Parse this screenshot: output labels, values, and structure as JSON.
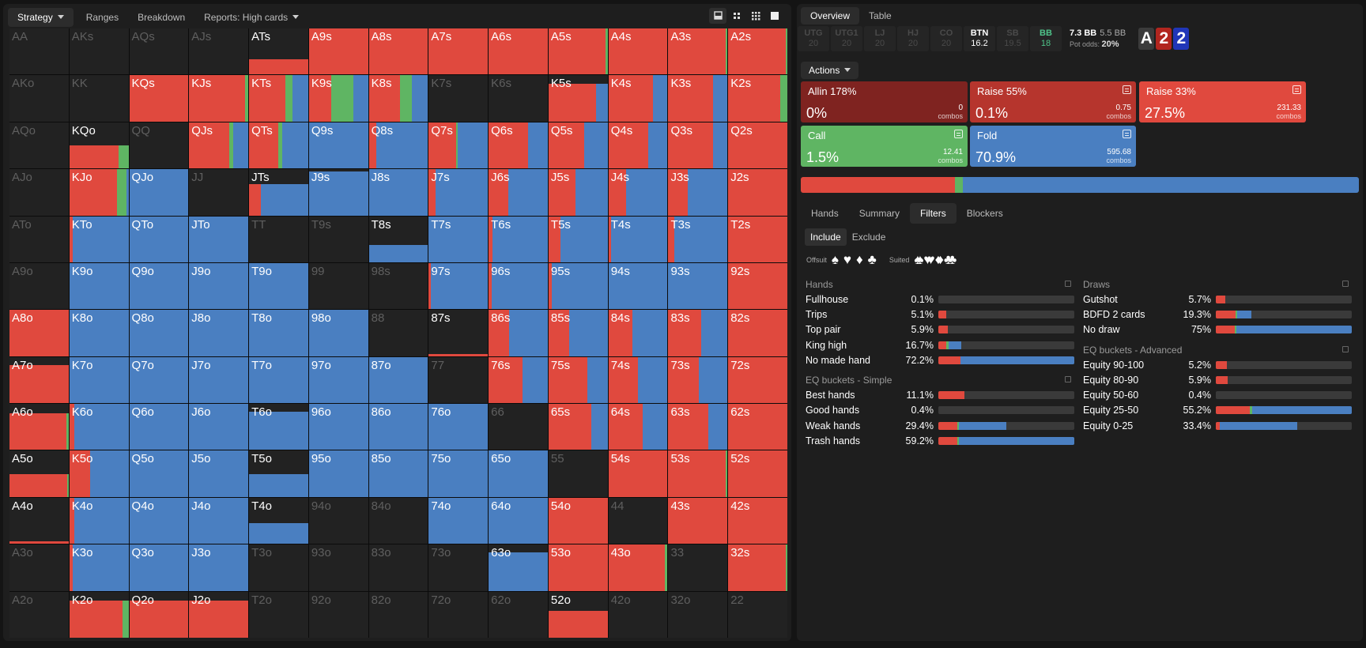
{
  "colors": {
    "raise": "#e0493e",
    "fold": "#4a7fc1",
    "call": "#5fb563",
    "allin": "#7f2320",
    "raise55": "#b6352d",
    "empty": "#222222"
  },
  "toolbar": {
    "tabs": [
      {
        "label": "Strategy",
        "active": true,
        "caret": true
      },
      {
        "label": "Ranges",
        "active": false,
        "caret": false
      },
      {
        "label": "Breakdown",
        "active": false,
        "caret": false
      },
      {
        "label": "Reports: High cards",
        "active": false,
        "caret": true
      }
    ],
    "view_icons": [
      "matrix-small-icon",
      "matrix-4-icon",
      "matrix-9-icon",
      "matrix-full-icon"
    ]
  },
  "grid": [
    [
      "AA",
      "AKs",
      "AQs",
      "AJs",
      "ATs",
      "A9s",
      "A8s",
      "A7s",
      "A6s",
      "A5s",
      "A4s",
      "A3s",
      "A2s"
    ],
    [
      "AKo",
      "KK",
      "KQs",
      "KJs",
      "KTs",
      "K9s",
      "K8s",
      "K7s",
      "K6s",
      "K5s",
      "K4s",
      "K3s",
      "K2s"
    ],
    [
      "AQo",
      "KQo",
      "QQ",
      "QJs",
      "QTs",
      "Q9s",
      "Q8s",
      "Q7s",
      "Q6s",
      "Q5s",
      "Q4s",
      "Q3s",
      "Q2s"
    ],
    [
      "AJo",
      "KJo",
      "QJo",
      "JJ",
      "JTs",
      "J9s",
      "J8s",
      "J7s",
      "J6s",
      "J5s",
      "J4s",
      "J3s",
      "J2s"
    ],
    [
      "ATo",
      "KTo",
      "QTo",
      "JTo",
      "TT",
      "T9s",
      "T8s",
      "T7s",
      "T6s",
      "T5s",
      "T4s",
      "T3s",
      "T2s"
    ],
    [
      "A9o",
      "K9o",
      "Q9o",
      "J9o",
      "T9o",
      "99",
      "98s",
      "97s",
      "96s",
      "95s",
      "94s",
      "93s",
      "92s"
    ],
    [
      "A8o",
      "K8o",
      "Q8o",
      "J8o",
      "T8o",
      "98o",
      "88",
      "87s",
      "86s",
      "85s",
      "84s",
      "83s",
      "82s"
    ],
    [
      "A7o",
      "K7o",
      "Q7o",
      "J7o",
      "T7o",
      "97o",
      "87o",
      "77",
      "76s",
      "75s",
      "74s",
      "73s",
      "72s"
    ],
    [
      "A6o",
      "K6o",
      "Q6o",
      "J6o",
      "T6o",
      "96o",
      "86o",
      "76o",
      "66",
      "65s",
      "64s",
      "63s",
      "62s"
    ],
    [
      "A5o",
      "K5o",
      "Q5o",
      "J5o",
      "T5o",
      "95o",
      "85o",
      "75o",
      "65o",
      "55",
      "54s",
      "53s",
      "52s"
    ],
    [
      "A4o",
      "K4o",
      "Q4o",
      "J4o",
      "T4o",
      "94o",
      "84o",
      "74o",
      "64o",
      "54o",
      "44",
      "43s",
      "42s"
    ],
    [
      "A3o",
      "K3o",
      "Q3o",
      "J3o",
      "T3o",
      "93o",
      "83o",
      "73o",
      "63o",
      "53o",
      "43o",
      "33",
      "32s"
    ],
    [
      "A2o",
      "K2o",
      "Q2o",
      "J2o",
      "T2o",
      "92o",
      "82o",
      "72o",
      "62o",
      "52o",
      "42o",
      "32o",
      "22"
    ]
  ],
  "cells": {
    "ATs": {
      "h": 0.33,
      "r": 1,
      "c": 0,
      "f": 0
    },
    "A9s": {
      "h": 1,
      "r": 1,
      "c": 0,
      "f": 0
    },
    "A8s": {
      "h": 1,
      "r": 1,
      "c": 0,
      "f": 0
    },
    "A7s": {
      "h": 1,
      "r": 1,
      "c": 0,
      "f": 0
    },
    "A6s": {
      "h": 1,
      "r": 1,
      "c": 0,
      "f": 0
    },
    "A5s": {
      "h": 1,
      "r": 0.96,
      "c": 0.04,
      "f": 0
    },
    "A4s": {
      "h": 1,
      "r": 1,
      "c": 0,
      "f": 0
    },
    "A3s": {
      "h": 1,
      "r": 0.97,
      "c": 0.03,
      "f": 0
    },
    "A2s": {
      "h": 1,
      "r": 0.97,
      "c": 0.03,
      "f": 0
    },
    "KQs": {
      "h": 1,
      "r": 1,
      "c": 0,
      "f": 0
    },
    "KJs": {
      "h": 1,
      "r": 0.95,
      "c": 0.05,
      "f": 0
    },
    "KTs": {
      "h": 1,
      "r": 0.62,
      "c": 0.12,
      "f": 0.26
    },
    "K9s": {
      "h": 1,
      "r": 0.37,
      "c": 0.38,
      "f": 0.25
    },
    "K8s": {
      "h": 1,
      "r": 0.53,
      "c": 0.2,
      "f": 0.27
    },
    "K5s": {
      "h": 0.82,
      "r": 0.81,
      "c": 0,
      "f": 0.19
    },
    "K4s": {
      "h": 1,
      "r": 0.75,
      "c": 0,
      "f": 0.25
    },
    "K3s": {
      "h": 1,
      "r": 0.75,
      "c": 0,
      "f": 0.25
    },
    "K2s": {
      "h": 1,
      "r": 0.88,
      "c": 0.12,
      "f": 0
    },
    "KQo": {
      "h": 0.5,
      "r": 0.83,
      "c": 0.17,
      "f": 0
    },
    "QJs": {
      "h": 1,
      "r": 0.68,
      "c": 0.06,
      "f": 0.26
    },
    "QTs": {
      "h": 1,
      "r": 0.5,
      "c": 0.06,
      "f": 0.44
    },
    "Q9s": {
      "h": 1,
      "r": 0,
      "c": 0,
      "f": 1
    },
    "Q8s": {
      "h": 1,
      "r": 0.12,
      "c": 0,
      "f": 0.88
    },
    "Q7s": {
      "h": 1,
      "r": 0.46,
      "c": 0.03,
      "f": 0.51
    },
    "Q6s": {
      "h": 1,
      "r": 0.67,
      "c": 0,
      "f": 0.33
    },
    "Q5s": {
      "h": 1,
      "r": 0.6,
      "c": 0,
      "f": 0.4
    },
    "Q4s": {
      "h": 1,
      "r": 0.67,
      "c": 0,
      "f": 0.33
    },
    "Q3s": {
      "h": 1,
      "r": 0.75,
      "c": 0,
      "f": 0.25
    },
    "Q2s": {
      "h": 1,
      "r": 1,
      "c": 0,
      "f": 0
    },
    "KJo": {
      "h": 1,
      "r": 0.8,
      "c": 0.17,
      "f": 0.03
    },
    "QJo": {
      "h": 1,
      "r": 0,
      "c": 0,
      "f": 1
    },
    "JTs": {
      "h": 0.67,
      "r": 0.2,
      "c": 0,
      "f": 0.8
    },
    "J9s": {
      "h": 0.95,
      "r": 0,
      "c": 0,
      "f": 1
    },
    "J8s": {
      "h": 1,
      "r": 0,
      "c": 0,
      "f": 1
    },
    "J7s": {
      "h": 1,
      "r": 0.12,
      "c": 0,
      "f": 0.88
    },
    "J6s": {
      "h": 1,
      "r": 0.33,
      "c": 0,
      "f": 0.67
    },
    "J5s": {
      "h": 1,
      "r": 0.45,
      "c": 0,
      "f": 0.55
    },
    "J4s": {
      "h": 1,
      "r": 0.3,
      "c": 0,
      "f": 0.7
    },
    "J3s": {
      "h": 1,
      "r": 0.33,
      "c": 0,
      "f": 0.67
    },
    "J2s": {
      "h": 1,
      "r": 1,
      "c": 0,
      "f": 0
    },
    "KTo": {
      "h": 1,
      "r": 0.05,
      "c": 0,
      "f": 0.95
    },
    "QTo": {
      "h": 1,
      "r": 0,
      "c": 0,
      "f": 1
    },
    "JTo": {
      "h": 1,
      "r": 0,
      "c": 0,
      "f": 1
    },
    "T8s": {
      "h": 0.37,
      "r": 0,
      "c": 0,
      "f": 1
    },
    "T7s": {
      "h": 1,
      "r": 0,
      "c": 0,
      "f": 1
    },
    "T6s": {
      "h": 1,
      "r": 0.06,
      "c": 0,
      "f": 0.94
    },
    "T5s": {
      "h": 1,
      "r": 0.2,
      "c": 0,
      "f": 0.8
    },
    "T4s": {
      "h": 1,
      "r": 0.05,
      "c": 0,
      "f": 0.95
    },
    "T3s": {
      "h": 1,
      "r": 0.1,
      "c": 0,
      "f": 0.9
    },
    "T2s": {
      "h": 1,
      "r": 1,
      "c": 0,
      "f": 0
    },
    "K9o": {
      "h": 1,
      "r": 0,
      "c": 0,
      "f": 1
    },
    "Q9o": {
      "h": 1,
      "r": 0,
      "c": 0,
      "f": 1
    },
    "J9o": {
      "h": 1,
      "r": 0,
      "c": 0,
      "f": 1
    },
    "T9o": {
      "h": 1,
      "r": 0,
      "c": 0,
      "f": 1
    },
    "97s": {
      "h": 1,
      "r": 0.03,
      "c": 0,
      "f": 0.97
    },
    "96s": {
      "h": 1,
      "r": 0.05,
      "c": 0,
      "f": 0.95
    },
    "95s": {
      "h": 1,
      "r": 0.05,
      "c": 0,
      "f": 0.95
    },
    "94s": {
      "h": 1,
      "r": 0,
      "c": 0,
      "f": 1
    },
    "93s": {
      "h": 1,
      "r": 0,
      "c": 0,
      "f": 1
    },
    "92s": {
      "h": 1,
      "r": 1,
      "c": 0,
      "f": 0
    },
    "A8o": {
      "h": 1,
      "r": 1,
      "c": 0,
      "f": 0
    },
    "K8o": {
      "h": 1,
      "r": 0,
      "c": 0,
      "f": 1
    },
    "Q8o": {
      "h": 1,
      "r": 0,
      "c": 0,
      "f": 1
    },
    "J8o": {
      "h": 1,
      "r": 0,
      "c": 0,
      "f": 1
    },
    "T8o": {
      "h": 1,
      "r": 0,
      "c": 0,
      "f": 1
    },
    "98o": {
      "h": 1,
      "r": 0,
      "c": 0,
      "f": 1
    },
    "87s": {
      "h": 0.04,
      "r": 1,
      "c": 0,
      "f": 0
    },
    "86s": {
      "h": 1,
      "r": 0.34,
      "c": 0,
      "f": 0.66
    },
    "85s": {
      "h": 1,
      "r": 0.35,
      "c": 0,
      "f": 0.65
    },
    "84s": {
      "h": 1,
      "r": 0.4,
      "c": 0,
      "f": 0.6
    },
    "83s": {
      "h": 1,
      "r": 0.55,
      "c": 0,
      "f": 0.45
    },
    "82s": {
      "h": 1,
      "r": 1,
      "c": 0,
      "f": 0
    },
    "A7o": {
      "h": 0.83,
      "r": 1,
      "c": 0,
      "f": 0
    },
    "K7o": {
      "h": 1,
      "r": 0,
      "c": 0,
      "f": 1
    },
    "Q7o": {
      "h": 1,
      "r": 0,
      "c": 0,
      "f": 1
    },
    "J7o": {
      "h": 1,
      "r": 0,
      "c": 0,
      "f": 1
    },
    "T7o": {
      "h": 1,
      "r": 0,
      "c": 0,
      "f": 1
    },
    "97o": {
      "h": 1,
      "r": 0,
      "c": 0,
      "f": 1
    },
    "87o": {
      "h": 1,
      "r": 0,
      "c": 0,
      "f": 1
    },
    "76s": {
      "h": 1,
      "r": 0.57,
      "c": 0,
      "f": 0.43
    },
    "75s": {
      "h": 1,
      "r": 0.65,
      "c": 0,
      "f": 0.35
    },
    "74s": {
      "h": 1,
      "r": 0.5,
      "c": 0,
      "f": 0.5
    },
    "73s": {
      "h": 1,
      "r": 0.52,
      "c": 0,
      "f": 0.48
    },
    "72s": {
      "h": 1,
      "r": 1,
      "c": 0,
      "f": 0
    },
    "A6o": {
      "h": 0.8,
      "r": 0.96,
      "c": 0.04,
      "f": 0
    },
    "K6o": {
      "h": 1,
      "r": 0.08,
      "c": 0,
      "f": 0.92
    },
    "Q6o": {
      "h": 1,
      "r": 0,
      "c": 0,
      "f": 1
    },
    "J6o": {
      "h": 1,
      "r": 0,
      "c": 0,
      "f": 1
    },
    "T6o": {
      "h": 0.83,
      "r": 0,
      "c": 0,
      "f": 1
    },
    "96o": {
      "h": 1,
      "r": 0,
      "c": 0,
      "f": 1
    },
    "86o": {
      "h": 1,
      "r": 0,
      "c": 0,
      "f": 1
    },
    "76o": {
      "h": 1,
      "r": 0,
      "c": 0,
      "f": 1
    },
    "65s": {
      "h": 1,
      "r": 0.72,
      "c": 0,
      "f": 0.28
    },
    "64s": {
      "h": 1,
      "r": 0.58,
      "c": 0,
      "f": 0.42
    },
    "63s": {
      "h": 1,
      "r": 0.67,
      "c": 0,
      "f": 0.33
    },
    "62s": {
      "h": 1,
      "r": 1,
      "c": 0,
      "f": 0
    },
    "A5o": {
      "h": 0.5,
      "r": 0.97,
      "c": 0.03,
      "f": 0
    },
    "K5o": {
      "h": 1,
      "r": 0.35,
      "c": 0,
      "f": 0.65
    },
    "Q5o": {
      "h": 1,
      "r": 0,
      "c": 0,
      "f": 1
    },
    "J5o": {
      "h": 1,
      "r": 0,
      "c": 0,
      "f": 1
    },
    "T5o": {
      "h": 0.5,
      "r": 0,
      "c": 0,
      "f": 1
    },
    "95o": {
      "h": 1,
      "r": 0,
      "c": 0,
      "f": 1
    },
    "85o": {
      "h": 1,
      "r": 0,
      "c": 0,
      "f": 1
    },
    "75o": {
      "h": 1,
      "r": 0,
      "c": 0,
      "f": 1
    },
    "65o": {
      "h": 1,
      "r": 0,
      "c": 0,
      "f": 1
    },
    "54s": {
      "h": 1,
      "r": 1,
      "c": 0,
      "f": 0
    },
    "53s": {
      "h": 1,
      "r": 0.97,
      "c": 0.03,
      "f": 0
    },
    "52s": {
      "h": 1,
      "r": 1,
      "c": 0,
      "f": 0
    },
    "A4o": {
      "h": 0.05,
      "r": 1,
      "c": 0,
      "f": 0
    },
    "K4o": {
      "h": 1,
      "r": 0.08,
      "c": 0,
      "f": 0.92
    },
    "Q4o": {
      "h": 1,
      "r": 0,
      "c": 0,
      "f": 1
    },
    "J4o": {
      "h": 1,
      "r": 0,
      "c": 0,
      "f": 1
    },
    "T4o": {
      "h": 0.45,
      "r": 0,
      "c": 0,
      "f": 1
    },
    "74o": {
      "h": 1,
      "r": 0,
      "c": 0,
      "f": 1
    },
    "64o": {
      "h": 1,
      "r": 0,
      "c": 0,
      "f": 1
    },
    "54o": {
      "h": 1,
      "r": 1,
      "c": 0,
      "f": 0
    },
    "43s": {
      "h": 1,
      "r": 1,
      "c": 0,
      "f": 0
    },
    "42s": {
      "h": 1,
      "r": 1,
      "c": 0,
      "f": 0
    },
    "K3o": {
      "h": 1,
      "r": 0.05,
      "c": 0,
      "f": 0.95
    },
    "Q3o": {
      "h": 1,
      "r": 0,
      "c": 0,
      "f": 1
    },
    "J3o": {
      "h": 1,
      "r": 0,
      "c": 0,
      "f": 1
    },
    "63o": {
      "h": 0.83,
      "r": 0,
      "c": 0,
      "f": 1
    },
    "53o": {
      "h": 1,
      "r": 1,
      "c": 0,
      "f": 0
    },
    "43o": {
      "h": 1,
      "r": 0.96,
      "c": 0.04,
      "f": 0
    },
    "32s": {
      "h": 1,
      "r": 0.97,
      "c": 0.03,
      "f": 0
    },
    "K2o": {
      "h": 0.8,
      "r": 0.9,
      "c": 0.1,
      "f": 0
    },
    "Q2o": {
      "h": 0.8,
      "r": 1,
      "c": 0,
      "f": 0
    },
    "J2o": {
      "h": 0.8,
      "r": 1,
      "c": 0,
      "f": 0
    },
    "52o": {
      "h": 0.58,
      "r": 1,
      "c": 0,
      "f": 0
    }
  },
  "right": {
    "top_tabs": [
      {
        "label": "Overview",
        "active": true
      },
      {
        "label": "Table",
        "active": false
      }
    ],
    "positions": [
      {
        "name": "UTG",
        "stack": "20",
        "style": "dim"
      },
      {
        "name": "UTG1",
        "stack": "20",
        "style": "dim"
      },
      {
        "name": "LJ",
        "stack": "20",
        "style": "dim"
      },
      {
        "name": "HJ",
        "stack": "20",
        "style": "dim"
      },
      {
        "name": "CO",
        "stack": "20",
        "style": "dim"
      },
      {
        "name": "BTN",
        "stack": "16.2",
        "style": "hi"
      },
      {
        "name": "SB",
        "stack": "19.5",
        "style": "dim"
      },
      {
        "name": "BB",
        "stack": "18",
        "style": "bb"
      }
    ],
    "pot": {
      "main": "7.3 BB",
      "secondary": "5.5 BB",
      "odds_label": "Pot odds:",
      "odds_value": "20%"
    },
    "board": [
      {
        "rank": "A",
        "color": "#3b3b3b"
      },
      {
        "rank": "2",
        "color": "#b2261f"
      },
      {
        "rank": "2",
        "color": "#2036b8"
      }
    ],
    "actions_label": "Actions",
    "actions": [
      {
        "name": "Allin 178%",
        "percent": "0%",
        "combos": "0",
        "unit": "combos",
        "color": "#7f2320",
        "icon": false
      },
      {
        "name": "Raise 55%",
        "percent": "0.1%",
        "combos": "0.75",
        "unit": "combos",
        "color": "#b6352d",
        "icon": true
      },
      {
        "name": "Raise 33%",
        "percent": "27.5%",
        "combos": "231.33",
        "unit": "combos",
        "color": "#e0493e",
        "icon": true
      },
      {
        "name": "Call",
        "percent": "1.5%",
        "combos": "12.41",
        "unit": "combos",
        "color": "#5fb563",
        "icon": true
      },
      {
        "name": "Fold",
        "percent": "70.9%",
        "combos": "595.68",
        "unit": "combos",
        "color": "#4a7fc1",
        "icon": true
      }
    ],
    "distribution": {
      "raise": 0.276,
      "call": 0.015,
      "fold": 0.709
    },
    "sub_tabs": [
      {
        "label": "Hands",
        "active": false
      },
      {
        "label": "Summary",
        "active": false
      },
      {
        "label": "Filters",
        "active": true
      },
      {
        "label": "Blockers",
        "active": false
      }
    ],
    "include_label": "Include",
    "exclude_label": "Exclude",
    "offsuit_label": "Offsuit",
    "suited_label": "Suited",
    "suit_glyphs": [
      "♠",
      "♥",
      "♦",
      "♣"
    ],
    "filters_left": [
      {
        "title": "Hands",
        "rows": [
          {
            "label": "Fullhouse",
            "value": "0.1%",
            "fill": 0.0,
            "r": 0,
            "c": 0,
            "f": 0
          },
          {
            "label": "Trips",
            "value": "5.1%",
            "fill": 0.06,
            "r": 1,
            "c": 0,
            "f": 0
          },
          {
            "label": "Top pair",
            "value": "5.9%",
            "fill": 0.07,
            "r": 1,
            "c": 0,
            "f": 0
          },
          {
            "label": "King high",
            "value": "16.7%",
            "fill": 0.17,
            "r": 0.35,
            "c": 0.1,
            "f": 0.55
          },
          {
            "label": "No made hand",
            "value": "72.2%",
            "fill": 1,
            "r": 0.16,
            "c": 0,
            "f": 0.84
          }
        ]
      },
      {
        "title": "EQ buckets - Simple",
        "rows": [
          {
            "label": "Best hands",
            "value": "11.1%",
            "fill": 0.19,
            "r": 1,
            "c": 0,
            "f": 0
          },
          {
            "label": "Good hands",
            "value": "0.4%",
            "fill": 0,
            "r": 0,
            "c": 0,
            "f": 0
          },
          {
            "label": "Weak hands",
            "value": "29.4%",
            "fill": 0.5,
            "r": 0.28,
            "c": 0.02,
            "f": 0.7
          },
          {
            "label": "Trash hands",
            "value": "59.2%",
            "fill": 1,
            "r": 0.14,
            "c": 0.01,
            "f": 0.85
          }
        ]
      }
    ],
    "filters_right": [
      {
        "title": "Draws",
        "rows": [
          {
            "label": "Gutshot",
            "value": "5.7%",
            "fill": 0.07,
            "r": 1,
            "c": 0,
            "f": 0
          },
          {
            "label": "BDFD 2 cards",
            "value": "19.3%",
            "fill": 0.26,
            "r": 0.56,
            "c": 0.05,
            "f": 0.39
          },
          {
            "label": "No draw",
            "value": "75%",
            "fill": 1,
            "r": 0.14,
            "c": 0.01,
            "f": 0.85
          }
        ]
      },
      {
        "title": "EQ buckets - Advanced",
        "rows": [
          {
            "label": "Equity 90-100",
            "value": "5.2%",
            "fill": 0.08,
            "r": 1,
            "c": 0,
            "f": 0
          },
          {
            "label": "Equity 80-90",
            "value": "5.9%",
            "fill": 0.09,
            "r": 1,
            "c": 0,
            "f": 0
          },
          {
            "label": "Equity 50-60",
            "value": "0.4%",
            "fill": 0,
            "r": 0,
            "c": 0,
            "f": 0
          },
          {
            "label": "Equity 25-50",
            "value": "55.2%",
            "fill": 1,
            "r": 0.25,
            "c": 0.02,
            "f": 0.73
          },
          {
            "label": "Equity 0-25",
            "value": "33.4%",
            "fill": 0.6,
            "r": 0.05,
            "c": 0,
            "f": 0.95
          }
        ]
      }
    ]
  }
}
